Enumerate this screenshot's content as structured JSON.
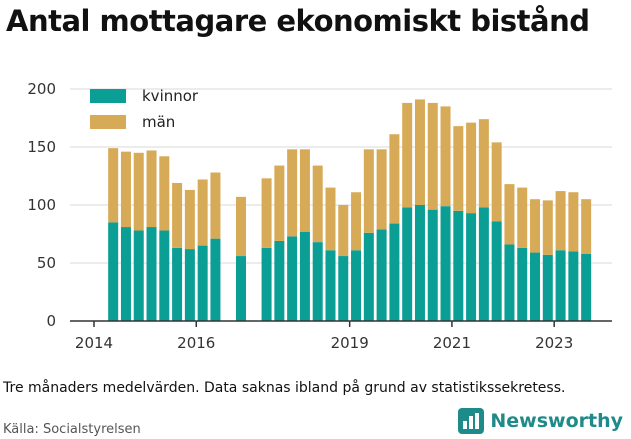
{
  "title": "Antal mottagare ekonomiskt bistånd",
  "caption": "Tre månaders medelvärden. Data saknas ibland på grund av statistikssekretess.",
  "source": "Källa: Socialstyrelsen",
  "brand": {
    "name": "Newsworthy",
    "icon": "bar-chart-logo-icon"
  },
  "colors": {
    "kvinnor": "#0a9e94",
    "man": "#d7aa57",
    "grid": "#d9d9d9",
    "axis": "#333333"
  },
  "chart_data": {
    "type": "bar",
    "stacked": true,
    "grid": true,
    "legend_position": "top-left",
    "ylim": [
      0,
      200
    ],
    "yticks": [
      "0",
      "50",
      "100",
      "150",
      "200"
    ],
    "ytick_values": [
      0,
      50,
      100,
      150,
      200
    ],
    "xlim": [
      2014.0,
      2024.6
    ],
    "xticks": [
      "2014",
      "2016",
      "2019",
      "2021",
      "2023"
    ],
    "xtick_values": [
      2014.0,
      2016.0,
      2019.0,
      2021.0,
      2023.0
    ],
    "x": [
      2014.375,
      2014.625,
      2014.875,
      2015.125,
      2015.375,
      2015.625,
      2015.875,
      2016.125,
      2016.375,
      2016.875,
      2017.375,
      2017.625,
      2017.875,
      2018.125,
      2018.375,
      2018.625,
      2018.875,
      2019.125,
      2019.375,
      2019.625,
      2019.875,
      2020.125,
      2020.375,
      2020.625,
      2020.875,
      2021.125,
      2021.375,
      2021.625,
      2021.875,
      2022.125,
      2022.375,
      2022.625,
      2022.875,
      2023.125,
      2023.375,
      2023.625
    ],
    "series": [
      {
        "name": "kvinnor",
        "values": [
          85,
          81,
          78,
          81,
          78,
          63,
          62,
          65,
          71,
          56,
          63,
          69,
          73,
          77,
          68,
          61,
          56,
          61,
          76,
          79,
          84,
          98,
          100,
          96,
          99,
          95,
          93,
          98,
          86,
          66,
          63,
          59,
          57,
          61,
          60,
          58
        ]
      },
      {
        "name": "män",
        "values": [
          64,
          65,
          67,
          66,
          64,
          56,
          51,
          57,
          57,
          51,
          60,
          65,
          75,
          71,
          66,
          54,
          44,
          50,
          72,
          69,
          77,
          90,
          91,
          92,
          86,
          73,
          78,
          76,
          68,
          52,
          52,
          46,
          47,
          51,
          51,
          47
        ]
      }
    ]
  }
}
